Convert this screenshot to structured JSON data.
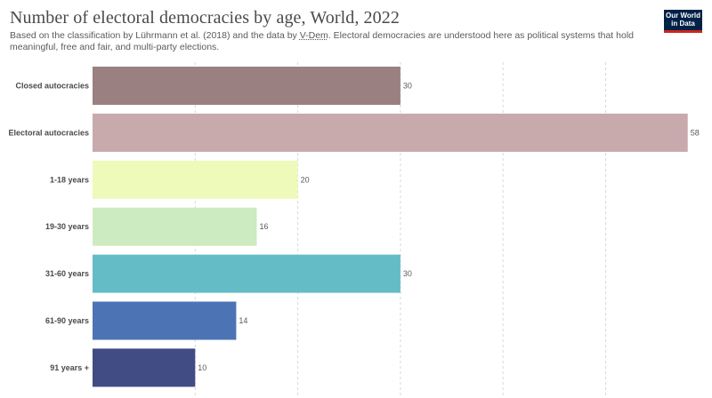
{
  "header": {
    "title": "Number of electoral democracies by age, World, 2022",
    "subtitle_pre": "Based on the classification by Lührmann et al. (2018) and the data by ",
    "subtitle_link": "V-Dem",
    "subtitle_post": ". Electoral democracies are understood here as political systems that hold meaningful, free and fair, and multi-party elections.",
    "logo_line1": "Our World",
    "logo_line2": "in Data"
  },
  "colors": {
    "logo_bg": "#002147",
    "logo_accent": "#ce261e"
  },
  "chart_data": {
    "type": "bar",
    "orientation": "horizontal",
    "title": "Number of electoral democracies by age, World, 2022",
    "categories": [
      "Closed autocracies",
      "Electoral autocracies",
      "1-18 years",
      "19-30 years",
      "31-60 years",
      "61-90 years",
      "91 years +"
    ],
    "values": [
      30,
      58,
      20,
      16,
      30,
      14,
      10
    ],
    "colors": [
      "#9a8081",
      "#c8aaac",
      "#eefab9",
      "#ccebc0",
      "#63bcc6",
      "#4c74b5",
      "#414b84"
    ],
    "xlim": [
      0,
      60
    ],
    "gridlines": [
      10,
      20,
      30,
      40,
      50
    ],
    "grid": true,
    "data_labels": true,
    "xlabel": "",
    "ylabel": ""
  }
}
